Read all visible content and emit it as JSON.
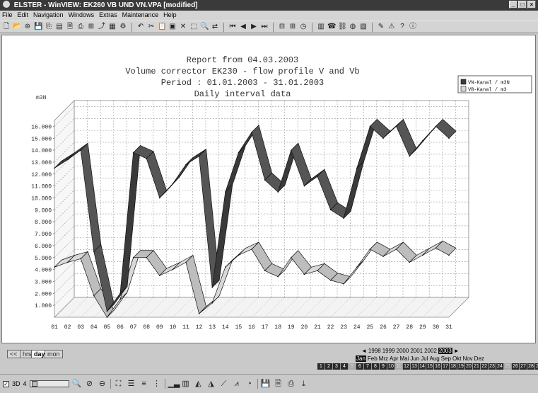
{
  "window": {
    "title": "ELSTER - WinVIEW: EK260 VB UND VN.VPA [modified]"
  },
  "menu": [
    "File",
    "Edit",
    "Navigation",
    "Windows",
    "Extras",
    "Maintenance",
    "Help"
  ],
  "report": {
    "line1": "Report from 04.03.2003",
    "line2": "Volume corrector EK230 - flow profile V and Vb",
    "line3": "Period : 01.01.2003 - 31.01.2003",
    "line4": "Daily interval data"
  },
  "chart_data": {
    "type": "line",
    "style": "3d-ribbon",
    "ylabel": "m3N",
    "ylim": [
      0,
      16500
    ],
    "y_ticks": [
      "1.000",
      "2.000",
      "3.000",
      "4.000",
      "5.000",
      "6.000",
      "7.000",
      "8.000",
      "9.000",
      "10.000",
      "11.000",
      "12.000",
      "13.000",
      "14.000",
      "15.000",
      "16.000"
    ],
    "categories": [
      "01",
      "02",
      "03",
      "04",
      "05",
      "06",
      "07",
      "08",
      "09",
      "10",
      "11",
      "12",
      "13",
      "14",
      "15",
      "16",
      "17",
      "18",
      "19",
      "20",
      "21",
      "22",
      "23",
      "24",
      "25",
      "26",
      "27",
      "28",
      "29",
      "30",
      "31"
    ],
    "grid": true,
    "legend": "top-right",
    "series": [
      {
        "name": "VN-Kanal / m3N",
        "color": "#3a3a3a",
        "values": [
          12500,
          13200,
          14000,
          5500,
          500,
          2000,
          13800,
          13300,
          10000,
          11200,
          12800,
          13500,
          2500,
          10500,
          13800,
          15500,
          11500,
          10500,
          14000,
          11000,
          11800,
          9000,
          8300,
          12500,
          16000,
          15000,
          16000,
          13500,
          14800,
          16000,
          15000
        ]
      },
      {
        "name": "VB-Kanal / m3",
        "color": "#d9d9d9",
        "values": [
          4200,
          4600,
          4900,
          1800,
          0,
          1500,
          5000,
          5000,
          3500,
          4000,
          4600,
          300,
          1200,
          4200,
          5200,
          5700,
          3900,
          3400,
          5000,
          3600,
          3900,
          3100,
          2800,
          4200,
          5700,
          5100,
          5700,
          4600,
          5200,
          5800,
          5200
        ]
      }
    ]
  },
  "tabs": [
    "<<",
    "hrs",
    "day",
    "mon"
  ],
  "active_tab": "day",
  "years": [
    "1998",
    "1999",
    "2000",
    "2001",
    "2002",
    "2003"
  ],
  "selected_year": "2003",
  "months": [
    "Jan",
    "Feb",
    "Mrz",
    "Apr",
    "Mai",
    "Jun",
    "Jul",
    "Aug",
    "Sep",
    "Okt",
    "Nov",
    "Dez"
  ],
  "selected_month": "Jan",
  "days": [
    "1",
    "2",
    "3",
    "4",
    "5",
    "6",
    "7",
    "8",
    "9",
    "10",
    "11",
    "12",
    "13",
    "14",
    "15",
    "16",
    "17",
    "18",
    "19",
    "20",
    "21",
    "22",
    "23",
    "24",
    "25",
    "26",
    "27",
    "28",
    "29",
    "30",
    "31"
  ],
  "bottom": {
    "check_3d": "3D",
    "slider_label": "4"
  }
}
